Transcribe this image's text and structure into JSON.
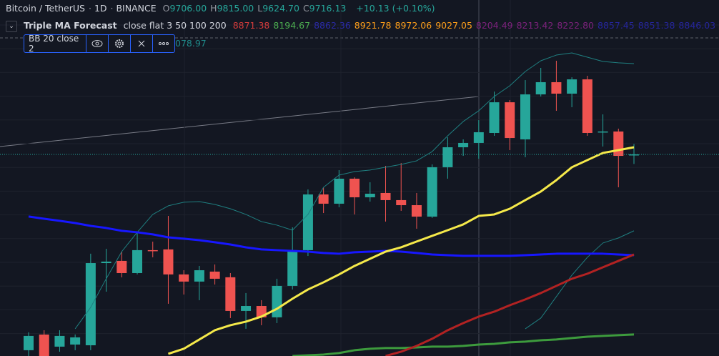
{
  "header": {
    "symbol": "Bitcoin / TetherUS",
    "interval": "1D",
    "exchange": "BINANCE",
    "ohlc": [
      {
        "key": "O",
        "value": "9706.00"
      },
      {
        "key": "H",
        "value": "9815.00"
      },
      {
        "key": "L",
        "value": "9624.70"
      },
      {
        "key": "C",
        "value": "9716.13"
      }
    ],
    "change": "+10.13 (+0.10%)",
    "indicator": {
      "name": "Triple MA Forecast",
      "params": "close flat 3 50 100 200",
      "values": [
        {
          "text": "8871.38",
          "color": "#d23b3b"
        },
        {
          "text": "8194.67",
          "color": "#4caf50"
        },
        {
          "text": "8862.36",
          "color": "#2a2aa6"
        },
        {
          "text": "8921.78",
          "color": "#ff9f1a"
        },
        {
          "text": "8972.06",
          "color": "#ff9f1a"
        },
        {
          "text": "9027.05",
          "color": "#ff9f1a"
        },
        {
          "text": "8204.49",
          "color": "#7b217b"
        },
        {
          "text": "8213.42",
          "color": "#7b217b"
        },
        {
          "text": "8222.80",
          "color": "#7b217b"
        },
        {
          "text": "8857.45",
          "color": "#25259c"
        },
        {
          "text": "8851.38",
          "color": "#25259c"
        },
        {
          "text": "8846.03",
          "color": "#25259c"
        }
      ]
    },
    "bb": {
      "name": "BB 20 close 2",
      "value": "078.97"
    }
  },
  "chart_data": {
    "type": "candlestick",
    "ylim": [
      7798,
      11185
    ],
    "up_color": "#26a69a",
    "down_color": "#ef5350",
    "open": [
      7853,
      8002,
      7887,
      7907,
      7900,
      8682,
      8703,
      8587,
      8805,
      8812,
      8574,
      8506,
      8601,
      8547,
      8227,
      8274,
      8166,
      8465,
      8805,
      9335,
      9247,
      9485,
      9308,
      9349,
      9281,
      9233,
      9124,
      9594,
      9784,
      9825,
      9920,
      10212,
      9859,
      10287,
      10403,
      10294,
      10430,
      9927,
      9934,
      9706
    ],
    "high": [
      8023,
      8043,
      8043,
      8003,
      8771,
      8818,
      8791,
      8975,
      8886,
      9131,
      8614,
      8655,
      8669,
      8587,
      8397,
      8329,
      8533,
      9022,
      9383,
      9403,
      9566,
      9498,
      9451,
      9607,
      9634,
      9349,
      9621,
      9879,
      9859,
      10042,
      10314,
      10233,
      10423,
      10539,
      10607,
      10450,
      10464,
      10097,
      9961,
      9815
    ],
    "low": [
      7798,
      7798,
      7839,
      7853,
      7853,
      8410,
      8546,
      8574,
      8737,
      8295,
      8383,
      8329,
      8478,
      8159,
      8057,
      8091,
      8111,
      8431,
      8750,
      9158,
      9213,
      9145,
      9267,
      9077,
      9179,
      9009,
      9111,
      9485,
      9702,
      9675,
      9893,
      9757,
      9689,
      10267,
      10131,
      10165,
      9893,
      9791,
      9403,
      9624.7
    ],
    "close": [
      7989,
      7798,
      7989,
      7975,
      8682,
      8696,
      8587,
      8805,
      8798,
      8574,
      8506,
      8614,
      8533,
      8227,
      8274,
      8166,
      8465,
      8805,
      9335,
      9247,
      9485,
      9308,
      9342,
      9281,
      9233,
      9124,
      9594,
      9784,
      9825,
      9927,
      10212,
      9872,
      10287,
      10403,
      10294,
      10430,
      9920,
      9934,
      9702,
      9716.13
    ],
    "lines": [
      {
        "color": "#1f7f80",
        "width": 1,
        "values": [
          null,
          null,
          null,
          8057,
          8261,
          8533,
          8791,
          8975,
          9145,
          9227,
          9261,
          9267,
          9240,
          9199,
          9145,
          9077,
          9043,
          8995,
          9145,
          9403,
          9519,
          9553,
          9567,
          9594,
          9621,
          9655,
          9743,
          9893,
          10029,
          10131,
          10267,
          10369,
          10505,
          10607,
          10661,
          10682,
          10641,
          10600,
          10587,
          10580
        ]
      },
      {
        "color": "#1f7f80",
        "width": 1,
        "values": [
          null,
          null,
          null,
          null,
          null,
          null,
          null,
          null,
          null,
          null,
          null,
          null,
          null,
          null,
          null,
          null,
          null,
          null,
          null,
          null,
          null,
          null,
          null,
          null,
          null,
          null,
          null,
          null,
          null,
          null,
          null,
          null,
          8057,
          8159,
          8363,
          8567,
          8737,
          8873,
          8921,
          8989
        ]
      },
      {
        "color": "#1717ff",
        "width": 3,
        "values": [
          9125,
          9104,
          9084,
          9063,
          9036,
          9016,
          8989,
          8975,
          8955,
          8927,
          8914,
          8900,
          8880,
          8859,
          8832,
          8812,
          8805,
          8798,
          8791,
          8778,
          8771,
          8785,
          8791,
          8798,
          8791,
          8778,
          8764,
          8757,
          8751,
          8751,
          8751,
          8751,
          8757,
          8764,
          8771,
          8771,
          8771,
          8771,
          8764,
          8757
        ]
      },
      {
        "color": "#3d9b3d",
        "width": 3,
        "values": [
          null,
          null,
          null,
          null,
          null,
          null,
          null,
          null,
          null,
          null,
          null,
          null,
          null,
          null,
          null,
          null,
          null,
          7798,
          7805,
          7812,
          7826,
          7853,
          7867,
          7874,
          7874,
          7880,
          7887,
          7887,
          7894,
          7907,
          7914,
          7928,
          7935,
          7948,
          7955,
          7969,
          7982,
          7989,
          7996,
          8003
        ]
      },
      {
        "color": "#b22222",
        "width": 3,
        "values": [
          null,
          null,
          null,
          null,
          null,
          null,
          null,
          null,
          null,
          null,
          null,
          null,
          null,
          null,
          null,
          null,
          null,
          null,
          null,
          null,
          null,
          null,
          null,
          7798,
          7839,
          7894,
          7962,
          8043,
          8111,
          8173,
          8220,
          8281,
          8336,
          8397,
          8465,
          8533,
          8581,
          8642,
          8703,
          8764
        ]
      },
      {
        "color": "#f5e94a",
        "width": 3,
        "values": [
          null,
          null,
          null,
          null,
          null,
          null,
          null,
          null,
          null,
          7819,
          7867,
          7955,
          8043,
          8091,
          8125,
          8173,
          8247,
          8343,
          8431,
          8499,
          8574,
          8655,
          8723,
          8791,
          8832,
          8887,
          8941,
          8995,
          9050,
          9131,
          9145,
          9199,
          9281,
          9363,
          9471,
          9594,
          9662,
          9730,
          9757,
          9784
        ]
      }
    ]
  }
}
